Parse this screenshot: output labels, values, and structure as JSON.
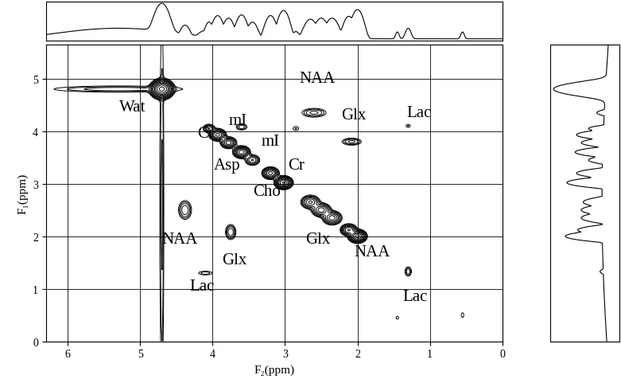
{
  "chart_data": {
    "type": "contour",
    "xlabel": "F₂(ppm)",
    "ylabel": "F₁(ppm)",
    "xlim": [
      6.3,
      0
    ],
    "ylim": [
      0,
      5.65
    ],
    "xticks": [
      0,
      1,
      2,
      3,
      4,
      5,
      6
    ],
    "yticks": [
      0,
      1,
      2,
      3,
      4,
      5
    ],
    "grid": true,
    "color": "#000000",
    "levels": [
      1,
      1.5,
      2.2,
      3.4,
      5,
      7.6,
      11,
      17,
      26,
      38,
      58,
      86
    ],
    "peaks": [
      {
        "x": 4.7,
        "y": 4.8,
        "amp": 100,
        "wx": 0.06,
        "wy": 0.07
      },
      {
        "x": 5.3,
        "y": 4.8,
        "amp": 3,
        "wx": 0.6,
        "wy": 0.04
      },
      {
        "x": 4.7,
        "y": 2.6,
        "amp": 2.5,
        "wx": 0.02,
        "wy": 2.6
      },
      {
        "x": 4.05,
        "y": 4.05,
        "amp": 8,
        "wx": 0.04,
        "wy": 0.04
      },
      {
        "x": 3.93,
        "y": 3.93,
        "amp": 20,
        "wx": 0.05,
        "wy": 0.05
      },
      {
        "x": 3.78,
        "y": 3.78,
        "amp": 14,
        "wx": 0.05,
        "wy": 0.05
      },
      {
        "x": 3.6,
        "y": 3.6,
        "amp": 22,
        "wx": 0.05,
        "wy": 0.05
      },
      {
        "x": 3.45,
        "y": 3.45,
        "amp": 8,
        "wx": 0.05,
        "wy": 0.05
      },
      {
        "x": 3.2,
        "y": 3.2,
        "amp": 20,
        "wx": 0.05,
        "wy": 0.05
      },
      {
        "x": 3.02,
        "y": 3.02,
        "amp": 40,
        "wx": 0.05,
        "wy": 0.05
      },
      {
        "x": 2.65,
        "y": 2.65,
        "amp": 12,
        "wx": 0.06,
        "wy": 0.06
      },
      {
        "x": 2.5,
        "y": 2.5,
        "amp": 14,
        "wx": 0.06,
        "wy": 0.06
      },
      {
        "x": 2.35,
        "y": 2.35,
        "amp": 14,
        "wx": 0.06,
        "wy": 0.06
      },
      {
        "x": 2.12,
        "y": 2.12,
        "amp": 18,
        "wx": 0.05,
        "wy": 0.05
      },
      {
        "x": 2.0,
        "y": 2.0,
        "amp": 45,
        "wx": 0.05,
        "wy": 0.05
      },
      {
        "x": 4.38,
        "y": 2.5,
        "amp": 5,
        "wx": 0.05,
        "wy": 0.1
      },
      {
        "x": 2.6,
        "y": 4.35,
        "amp": 4,
        "wx": 0.1,
        "wy": 0.05
      },
      {
        "x": 3.75,
        "y": 2.08,
        "amp": 5,
        "wx": 0.04,
        "wy": 0.08
      },
      {
        "x": 2.08,
        "y": 3.8,
        "amp": 4,
        "wx": 0.08,
        "wy": 0.04
      },
      {
        "x": 4.1,
        "y": 1.3,
        "amp": 2,
        "wx": 0.08,
        "wy": 0.03
      },
      {
        "x": 1.3,
        "y": 4.1,
        "amp": 1.6,
        "wx": 0.03,
        "wy": 0.03
      },
      {
        "x": 1.3,
        "y": 1.33,
        "amp": 3,
        "wx": 0.03,
        "wy": 0.06
      },
      {
        "x": 3.6,
        "y": 4.08,
        "amp": 3,
        "wx": 0.05,
        "wy": 0.04
      },
      {
        "x": 2.85,
        "y": 4.05,
        "amp": 1.6,
        "wx": 0.04,
        "wy": 0.04
      },
      {
        "x": 1.45,
        "y": 0.45,
        "amp": 1.5,
        "wx": 0.02,
        "wy": 0.03
      },
      {
        "x": 0.55,
        "y": 0.5,
        "amp": 1.5,
        "wx": 0.02,
        "wy": 0.05
      }
    ],
    "annotations": [
      {
        "text": "Wat",
        "x": 5.1,
        "y": 4.45
      },
      {
        "text": "Cr",
        "x": 4.1,
        "y": 3.95
      },
      {
        "text": "mI",
        "x": 3.65,
        "y": 4.2
      },
      {
        "text": "mI",
        "x": 3.2,
        "y": 3.8
      },
      {
        "text": "Asp",
        "x": 3.8,
        "y": 3.35
      },
      {
        "text": "Cr",
        "x": 2.85,
        "y": 3.35
      },
      {
        "text": "Cho",
        "x": 3.25,
        "y": 2.85
      },
      {
        "text": "NAA",
        "x": 2.55,
        "y": 5.0
      },
      {
        "text": "Glx",
        "x": 2.05,
        "y": 4.3
      },
      {
        "text": "Lac",
        "x": 1.15,
        "y": 4.35
      },
      {
        "text": "NAA",
        "x": 4.45,
        "y": 1.95
      },
      {
        "text": "Glx",
        "x": 3.7,
        "y": 1.55
      },
      {
        "text": "Glx",
        "x": 2.55,
        "y": 1.95
      },
      {
        "text": "NAA",
        "x": 1.8,
        "y": 1.7
      },
      {
        "text": "Lac",
        "x": 4.15,
        "y": 1.05
      },
      {
        "text": "Lac",
        "x": 1.2,
        "y": 0.85
      }
    ]
  }
}
